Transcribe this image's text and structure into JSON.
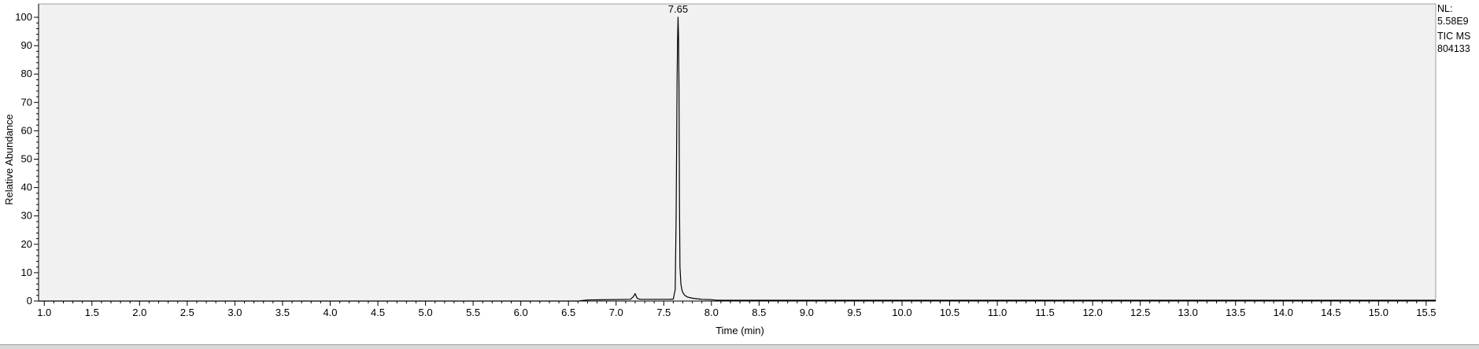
{
  "chart_data": {
    "type": "line",
    "title": "",
    "xlabel": "Time (min)",
    "ylabel": "Relative Abundance",
    "xlim": [
      0.94,
      15.6
    ],
    "ylim": [
      0,
      100
    ],
    "xticks": [
      "1.0",
      "1.5",
      "2.0",
      "2.5",
      "3.0",
      "3.5",
      "4.0",
      "4.5",
      "5.0",
      "5.5",
      "6.0",
      "6.5",
      "7.0",
      "7.5",
      "8.0",
      "8.5",
      "9.0",
      "9.5",
      "10.0",
      "10.5",
      "11.0",
      "11.5",
      "12.0",
      "12.5",
      "13.0",
      "13.5",
      "14.0",
      "14.5",
      "15.0",
      "15.5"
    ],
    "yticks": [
      "0",
      "10",
      "20",
      "30",
      "40",
      "50",
      "60",
      "70",
      "80",
      "90",
      "100"
    ],
    "peak_annotation": {
      "x": 7.65,
      "y": 100,
      "label": "7.65"
    },
    "series": [
      {
        "x": [
          0.94,
          6.6,
          6.7,
          7.15,
          7.18,
          7.2,
          7.22,
          7.25,
          7.55,
          7.6,
          7.62,
          7.63,
          7.64,
          7.645,
          7.65,
          7.655,
          7.66,
          7.665,
          7.67,
          7.68,
          7.69,
          7.7,
          7.72,
          7.75,
          7.8,
          7.9,
          8.0,
          8.05,
          15.6
        ],
        "y": [
          0,
          0,
          0.4,
          0.6,
          1.5,
          2.6,
          1.0,
          0.6,
          0.6,
          0.7,
          4,
          30,
          78,
          92,
          100,
          93,
          75,
          35,
          12,
          6,
          4,
          3,
          2,
          1.4,
          1.0,
          0.6,
          0.5,
          0.3,
          0.3
        ]
      }
    ],
    "grid": false,
    "background": "#f1f1f1",
    "line_color": "#000000"
  },
  "sidebar": {
    "lines": [
      "NL:",
      "5.58E9",
      "TIC MS",
      "804133"
    ]
  }
}
